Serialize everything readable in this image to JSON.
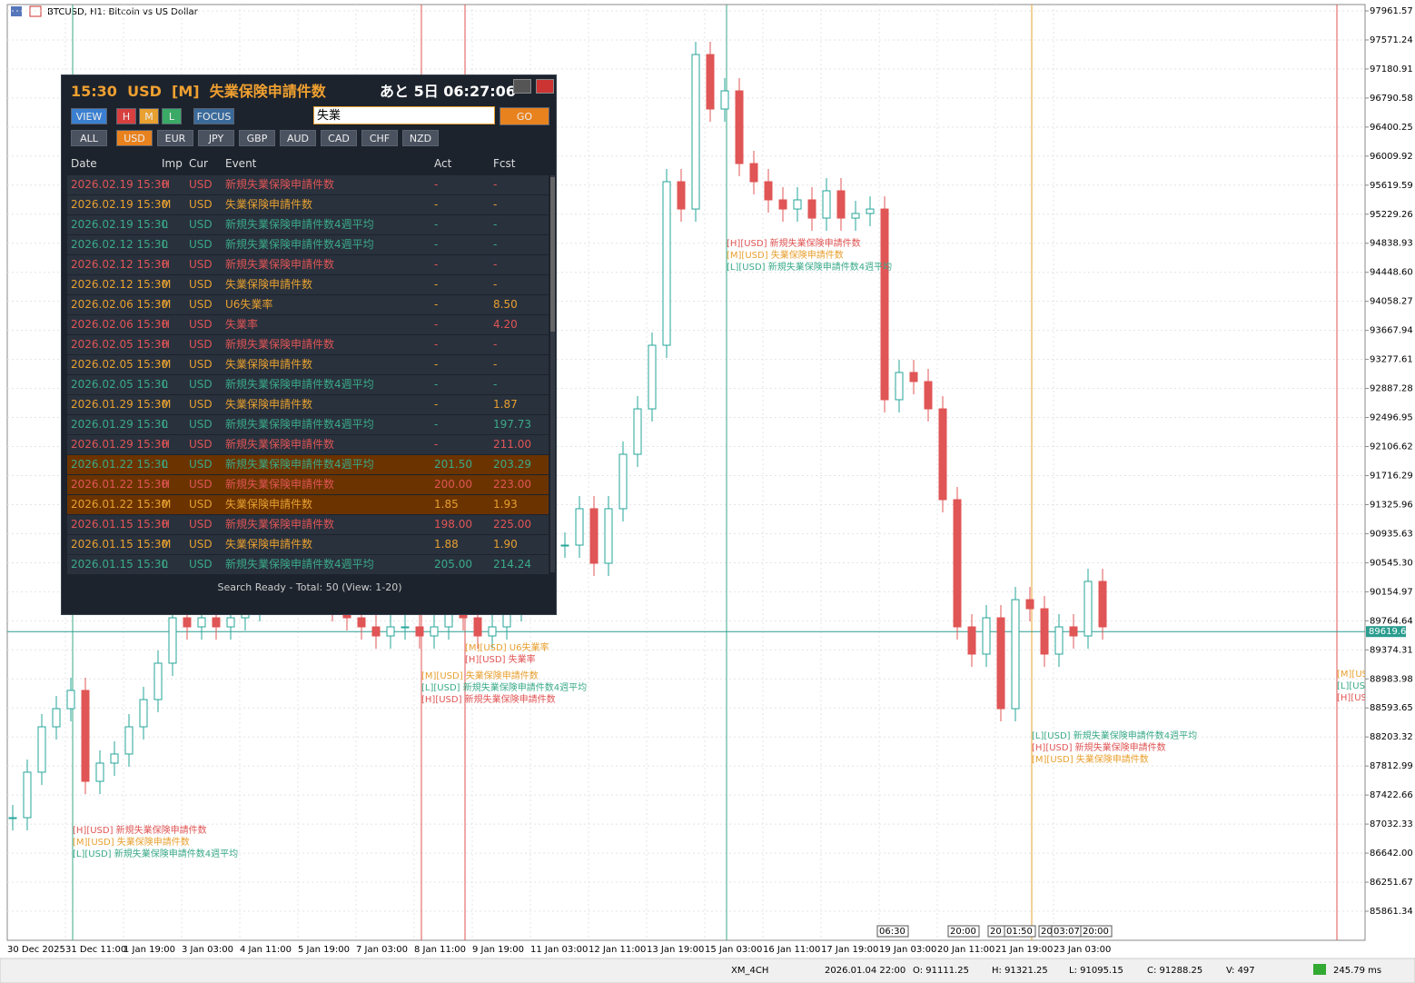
{
  "window_title": "BTCUSD, H1:  Bitcoin vs US Dollar",
  "chart_data": {
    "type": "candlestick",
    "closes": [
      87119,
      87730,
      88340,
      88584,
      88829,
      87607,
      87852,
      87974,
      88340,
      88706,
      89195,
      89805,
      89683,
      89805,
      89683,
      89805,
      89927,
      90049,
      90172,
      90294,
      90172,
      90049,
      89927,
      89805,
      89683,
      89561,
      89683,
      89683,
      89561,
      89683,
      89927,
      89805,
      89561,
      89683,
      89927,
      90294,
      90538,
      90782,
      90782,
      91271,
      90538,
      91271,
      92003,
      92613,
      93468,
      95666,
      95299,
      97375,
      96643,
      96887,
      95910,
      95666,
      95422,
      95299,
      95422,
      95177,
      95544,
      95177,
      95239,
      95299,
      92736,
      93102,
      92980,
      92613,
      91393,
      89683,
      89317,
      89805,
      88584,
      90049,
      89927,
      89317,
      89683,
      89561,
      90294,
      89683
    ],
    "ylim": [
      85470.62,
      98047.04
    ],
    "yticks": [
      97961.57,
      97571.24,
      97180.91,
      96790.58,
      96400.25,
      96009.92,
      95619.59,
      95229.26,
      94838.93,
      {
        "value": 94448.6,
        "label": "94448.60"
      },
      94058.27,
      93667.94,
      93277.61,
      92887.28,
      92496.95,
      92106.62,
      91716.29,
      91325.96,
      90935.63,
      {
        "value": 90545.3,
        "label": "90545.30"
      },
      90154.97,
      89764.64,
      89374.31,
      88983.98,
      88593.65,
      88203.32,
      87812.99,
      87422.66,
      87032.33,
      {
        "value": 86642,
        "label": "86642.00"
      },
      86251.67,
      85861.34
    ],
    "x_labels": [
      "30 Dec 2025",
      "31 Dec 11:00",
      "1 Jan 19:00",
      "3 Jan 03:00",
      "4 Jan 11:00",
      "5 Jan 19:00",
      "7 Jan 03:00",
      "8 Jan 11:00",
      "9 Jan 19:00",
      "11 Jan 03:00",
      "12 Jan 11:00",
      "13 Jan 19:00",
      "15 Jan 03:00",
      "16 Jan 11:00",
      "17 Jan 19:00",
      "19 Jan 03:00",
      "20 Jan 11:00",
      "21 Jan 19:00",
      "23 Jan 03:00"
    ],
    "current_price": {
      "value": 89619.65,
      "label": "89619.65"
    },
    "grid": true
  },
  "annotations": [
    [
      "[H][USD] 新規失業保険申請件数",
      "[M][USD] 失業保険申請件数",
      "[L][USD] 新規失業保険申請件数4週平均"
    ],
    [
      "[H][USD] 新規失業保険申請件数",
      "[M][USD] 失業保険申請件数",
      "[L][USD] 新規失業保険申請件数4週平均"
    ],
    [
      "[M][USD] U6失業率",
      "[H][USD] 失業率"
    ],
    [
      "[M][USD] 失業保険申請件数",
      "[L][USD] 新規失業保険申請件数4週平均",
      "[H][USD] 新規失業保険申請件数"
    ],
    [
      "[L][USD] 新規失業保険申請件数4週平均",
      "[H][USD] 新規失業保険申請件数",
      "[M][USD] 失業保険申請件数"
    ],
    [
      "[M][US",
      "[L][US",
      "[H][US"
    ]
  ],
  "time_markers": [
    "06:30",
    "20:00",
    "20",
    "01:50",
    "20",
    "03:07",
    "20:00"
  ],
  "panel": {
    "title": "15:30  USD  [M]  失業保険申請件数",
    "countdown": "あと 5日 06:27:06",
    "buttons": [
      "VIEW",
      "H",
      "M",
      "L",
      "FOCUS"
    ],
    "search": "失業",
    "go": "GO",
    "currencies": [
      "ALL",
      "USD",
      "EUR",
      "JPY",
      "GBP",
      "AUD",
      "CAD",
      "CHF",
      "NZD"
    ],
    "columns": [
      "Date",
      "Imp",
      "Cur",
      "Event",
      "Act",
      "Fcst"
    ],
    "rows": [
      [
        "2026.02.19 15:30",
        "H",
        "USD",
        "新規失業保険申請件数",
        "-",
        "-"
      ],
      [
        "2026.02.19 15:30",
        "M",
        "USD",
        "失業保険申請件数",
        "-",
        "-"
      ],
      [
        "2026.02.19 15:30",
        "L",
        "USD",
        "新規失業保険申請件数4週平均",
        "-",
        "-"
      ],
      [
        "2026.02.12 15:30",
        "L",
        "USD",
        "新規失業保険申請件数4週平均",
        "-",
        "-"
      ],
      [
        "2026.02.12 15:30",
        "H",
        "USD",
        "新規失業保険申請件数",
        "-",
        "-"
      ],
      [
        "2026.02.12 15:30",
        "M",
        "USD",
        "失業保険申請件数",
        "-",
        "-"
      ],
      [
        "2026.02.06 15:30",
        "M",
        "USD",
        "U6失業率",
        "-",
        "8.50"
      ],
      [
        "2026.02.06 15:30",
        "H",
        "USD",
        "失業率",
        "-",
        "4.20"
      ],
      [
        "2026.02.05 15:30",
        "H",
        "USD",
        "新規失業保険申請件数",
        "-",
        "-"
      ],
      [
        "2026.02.05 15:30",
        "M",
        "USD",
        "失業保険申請件数",
        "-",
        "-"
      ],
      [
        "2026.02.05 15:30",
        "L",
        "USD",
        "新規失業保険申請件数4週平均",
        "-",
        "-"
      ],
      [
        "2026.01.29 15:30",
        "M",
        "USD",
        "失業保険申請件数",
        "-",
        "1.87"
      ],
      [
        "2026.01.29 15:30",
        "L",
        "USD",
        "新規失業保険申請件数4週平均",
        "-",
        "197.73"
      ],
      [
        "2026.01.29 15:30",
        "H",
        "USD",
        "新規失業保険申請件数",
        "-",
        "211.00"
      ],
      [
        "2026.01.22 15:30",
        "L",
        "USD",
        "新規失業保険申請件数4週平均",
        "201.50",
        "203.29"
      ],
      [
        "2026.01.22 15:30",
        "H",
        "USD",
        "新規失業保険申請件数",
        "200.00",
        "223.00"
      ],
      [
        "2026.01.22 15:30",
        "M",
        "USD",
        "失業保険申請件数",
        "1.85",
        "1.93"
      ],
      [
        "2026.01.15 15:30",
        "H",
        "USD",
        "新規失業保険申請件数",
        "198.00",
        "225.00"
      ],
      [
        "2026.01.15 15:30",
        "M",
        "USD",
        "失業保険申請件数",
        "1.88",
        "1.90"
      ],
      [
        "2026.01.15 15:30",
        "L",
        "USD",
        "新規失業保険申請件数4週平均",
        "205.00",
        "214.24"
      ]
    ],
    "status": "Search Ready - Total: 50 (View: 1-20)"
  },
  "status_bar": [
    "XM_4CH",
    "2026.01.04 22:00",
    "O: 91111.25",
    "H: 91321.25",
    "L: 91095.15",
    "C: 91288.25",
    "V: 497",
    "245.79 ms"
  ]
}
